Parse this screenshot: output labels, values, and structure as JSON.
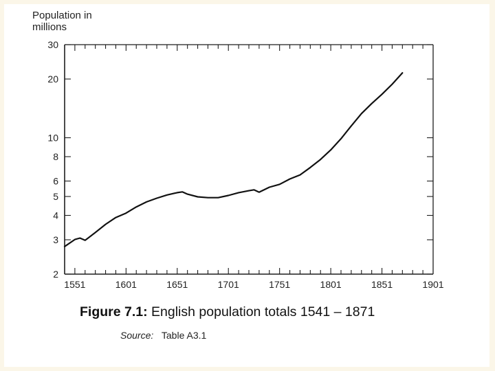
{
  "chart_data": {
    "type": "line",
    "ylabel": "Population in millions",
    "y_scale": "log",
    "ylim": [
      2,
      30
    ],
    "xlim": [
      1541,
      1901
    ],
    "y_ticks": [
      2,
      3,
      4,
      5,
      6,
      8,
      10,
      20,
      30
    ],
    "y_tick_labels": [
      "2",
      "3",
      "4",
      "5",
      "6",
      "8",
      "10",
      "20",
      "30"
    ],
    "x_ticks": [
      1551,
      1601,
      1651,
      1701,
      1751,
      1801,
      1851,
      1901
    ],
    "x_tick_labels": [
      "1551",
      "1601",
      "1651",
      "1701",
      "1751",
      "1801",
      "1851",
      "1901"
    ],
    "series": [
      {
        "name": "English population",
        "x": [
          1541,
          1551,
          1556,
          1561,
          1571,
          1581,
          1591,
          1601,
          1611,
          1621,
          1631,
          1641,
          1651,
          1656,
          1661,
          1671,
          1681,
          1691,
          1701,
          1711,
          1721,
          1726,
          1731,
          1741,
          1751,
          1761,
          1771,
          1781,
          1791,
          1801,
          1811,
          1821,
          1831,
          1841,
          1851,
          1861,
          1871
        ],
        "y": [
          2.77,
          3.01,
          3.06,
          2.98,
          3.27,
          3.6,
          3.9,
          4.11,
          4.42,
          4.69,
          4.9,
          5.09,
          5.23,
          5.28,
          5.14,
          4.98,
          4.93,
          4.93,
          5.06,
          5.23,
          5.35,
          5.41,
          5.26,
          5.58,
          5.77,
          6.15,
          6.45,
          7.04,
          7.74,
          8.66,
          9.89,
          11.5,
          13.3,
          14.97,
          16.7,
          18.8,
          21.5
        ]
      }
    ]
  },
  "caption": {
    "figure_label": "Figure 7.1:",
    "text": "English population totals 1541 – 1871"
  },
  "source": {
    "label": "Source:",
    "text": "Table A3.1"
  }
}
